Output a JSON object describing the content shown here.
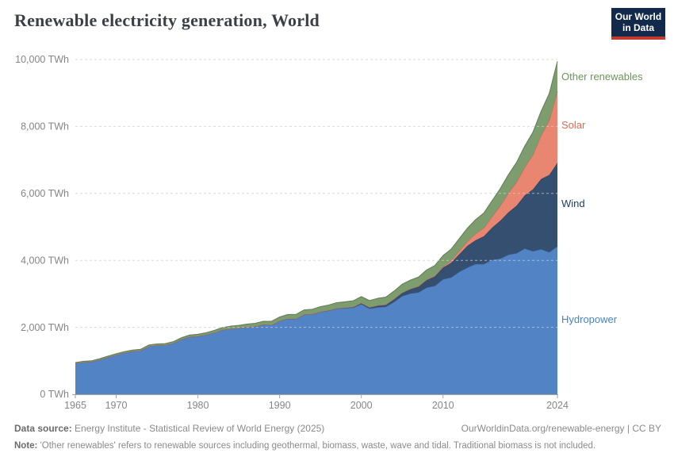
{
  "header": {
    "title": "Renewable electricity generation, World",
    "logo": {
      "line1": "Our World",
      "line2": "in Data",
      "bg_color": "#12294b",
      "stripe_color": "#c23a2e"
    }
  },
  "chart_data": {
    "type": "area",
    "stacked": true,
    "title": "Renewable electricity generation, World",
    "xlabel": "",
    "ylabel": "",
    "unit": "TWh",
    "xlim": [
      1965,
      2024
    ],
    "ylim": [
      0,
      10000
    ],
    "grid": "horizontal dashed, drawn over areas",
    "legend_position": "right of plot, inline colored labels",
    "x": [
      1965,
      1966,
      1967,
      1968,
      1969,
      1970,
      1971,
      1972,
      1973,
      1974,
      1975,
      1976,
      1977,
      1978,
      1979,
      1980,
      1981,
      1982,
      1983,
      1984,
      1985,
      1986,
      1987,
      1988,
      1989,
      1990,
      1991,
      1992,
      1993,
      1994,
      1995,
      1996,
      1997,
      1998,
      1999,
      2000,
      2001,
      2002,
      2003,
      2004,
      2005,
      2006,
      2007,
      2008,
      2009,
      2010,
      2011,
      2012,
      2013,
      2014,
      2015,
      2016,
      2017,
      2018,
      2019,
      2020,
      2021,
      2022,
      2023,
      2024
    ],
    "series": [
      {
        "name": "Hydropower",
        "fill_color": "#5183c5",
        "label_color": "#4782c2",
        "values": [
          923,
          960,
          975,
          1035,
          1110,
          1181,
          1240,
          1285,
          1307,
          1434,
          1464,
          1470,
          1530,
          1645,
          1720,
          1737,
          1780,
          1845,
          1925,
          1960,
          1979,
          2010,
          2030,
          2080,
          2070,
          2191,
          2260,
          2255,
          2380,
          2390,
          2462,
          2500,
          2560,
          2575,
          2590,
          2696,
          2560,
          2600,
          2615,
          2760,
          2933,
          3010,
          3045,
          3190,
          3240,
          3437,
          3490,
          3660,
          3790,
          3890,
          3892,
          4020,
          4055,
          4170,
          4215,
          4355,
          4274,
          4334,
          4247,
          4418
        ]
      },
      {
        "name": "Wind",
        "fill_color": "#344f70",
        "label_color": "#1d3d63",
        "values": [
          0,
          0,
          0,
          0,
          0,
          0,
          0,
          0,
          0,
          0,
          0,
          0,
          0,
          0,
          0,
          0,
          0,
          0,
          0,
          0,
          0,
          1,
          1,
          2,
          3,
          4,
          4,
          5,
          6,
          7,
          8,
          9,
          12,
          16,
          21,
          31,
          38,
          52,
          63,
          85,
          104,
          133,
          171,
          221,
          276,
          346,
          437,
          524,
          646,
          712,
          828,
          957,
          1130,
          1265,
          1417,
          1586,
          1848,
          2098,
          2304,
          2494
        ]
      },
      {
        "name": "Solar",
        "fill_color": "#e98672",
        "label_color": "#e5684e",
        "values": [
          0,
          0,
          0,
          0,
          0,
          0,
          0,
          0,
          0,
          0,
          0,
          0,
          0,
          0,
          0,
          0,
          0,
          0,
          0,
          0,
          0,
          0,
          0,
          0,
          0,
          0,
          0,
          0,
          0,
          0,
          0,
          0,
          0,
          0,
          0,
          1,
          1,
          2,
          2,
          3,
          4,
          6,
          8,
          13,
          21,
          33,
          64,
          100,
          136,
          199,
          251,
          329,
          446,
          578,
          709,
          846,
          1033,
          1300,
          1629,
          2131
        ]
      },
      {
        "name": "Other renewables",
        "fill_color": "#7d9d6f",
        "label_color": "#6c9457",
        "values": [
          24,
          25,
          26,
          28,
          29,
          31,
          33,
          34,
          36,
          38,
          40,
          42,
          44,
          47,
          50,
          54,
          58,
          62,
          67,
          72,
          78,
          84,
          90,
          97,
          104,
          112,
          119,
          126,
          133,
          140,
          148,
          156,
          164,
          172,
          181,
          190,
          200,
          210,
          221,
          233,
          246,
          260,
          275,
          291,
          308,
          326,
          346,
          368,
          392,
          418,
          446,
          477,
          510,
          546,
          585,
          627,
          672,
          720,
          800,
          900
        ]
      }
    ],
    "y_ticks": [
      {
        "value": 0,
        "label": "0 TWh"
      },
      {
        "value": 2000,
        "label": "2,000 TWh"
      },
      {
        "value": 4000,
        "label": "4,000 TWh"
      },
      {
        "value": 6000,
        "label": "6,000 TWh"
      },
      {
        "value": 8000,
        "label": "8,000 TWh"
      },
      {
        "value": 10000,
        "label": "10,000 TWh"
      }
    ],
    "x_ticks": [
      {
        "value": 1965,
        "label": "1965"
      },
      {
        "value": 1970,
        "label": "1970"
      },
      {
        "value": 1980,
        "label": "1980"
      },
      {
        "value": 1990,
        "label": "1990"
      },
      {
        "value": 2000,
        "label": "2000"
      },
      {
        "value": 2010,
        "label": "2010"
      },
      {
        "value": 2024,
        "label": "2024"
      }
    ]
  },
  "footer": {
    "data_source_label": "Data source:",
    "data_source_text": "Energy Institute - Statistical Review of World Energy (2025)",
    "citation_url": "OurWorldinData.org/renewable-energy",
    "citation_separator": "|",
    "citation_license": "CC BY",
    "note_label": "Note:",
    "note_text": "'Other renewables' refers to renewable sources including geothermal, biomass, waste, wave and tidal. Traditional biomass is not included."
  }
}
